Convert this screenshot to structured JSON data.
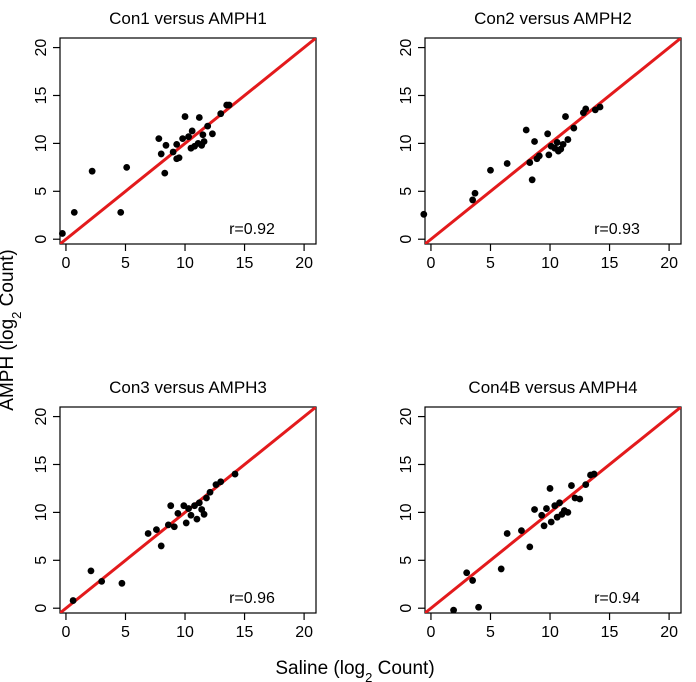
{
  "figure": {
    "xlabel": "Saline (log",
    "xlabel_sub": "2",
    "xlabel_end": " Count)",
    "ylabel": "AMPH (log",
    "ylabel_sub": "2",
    "ylabel_end": " Count)"
  },
  "colors": {
    "identity_line": "#e31a1c",
    "points": "#000000"
  },
  "chart_data": [
    {
      "type": "scatter",
      "title": "Con1 versus AMPH1",
      "annotation": "r=0.92",
      "xlim": [
        -0.5,
        21
      ],
      "ylim": [
        -0.5,
        21
      ],
      "xticks": [
        0,
        5,
        10,
        15,
        20
      ],
      "yticks": [
        0,
        5,
        10,
        15,
        20
      ],
      "reference_line": "y = x",
      "points": [
        [
          -0.3,
          0.6
        ],
        [
          0.7,
          2.8
        ],
        [
          2.2,
          7.1
        ],
        [
          4.6,
          2.8
        ],
        [
          5.1,
          7.5
        ],
        [
          7.8,
          10.5
        ],
        [
          8.0,
          8.9
        ],
        [
          8.3,
          6.9
        ],
        [
          8.4,
          9.8
        ],
        [
          9.0,
          9.1
        ],
        [
          9.3,
          9.9
        ],
        [
          9.3,
          8.4
        ],
        [
          9.5,
          8.5
        ],
        [
          9.8,
          10.5
        ],
        [
          10.0,
          12.8
        ],
        [
          10.3,
          10.7
        ],
        [
          10.5,
          9.5
        ],
        [
          10.6,
          11.3
        ],
        [
          10.8,
          9.7
        ],
        [
          11.1,
          10.0
        ],
        [
          11.2,
          12.7
        ],
        [
          11.4,
          9.8
        ],
        [
          11.5,
          10.9
        ],
        [
          11.6,
          10.2
        ],
        [
          11.9,
          11.8
        ],
        [
          12.3,
          11.0
        ],
        [
          13.0,
          13.1
        ],
        [
          13.5,
          14.0
        ],
        [
          13.7,
          14.0
        ]
      ]
    },
    {
      "type": "scatter",
      "title": "Con2 versus AMPH2",
      "annotation": "r=0.93",
      "xlim": [
        -0.5,
        21
      ],
      "ylim": [
        -0.5,
        21
      ],
      "xticks": [
        0,
        5,
        10,
        15,
        20
      ],
      "yticks": [
        0,
        5,
        10,
        15,
        20
      ],
      "reference_line": "y = x",
      "points": [
        [
          -0.6,
          2.6
        ],
        [
          3.5,
          4.1
        ],
        [
          3.7,
          4.8
        ],
        [
          5.0,
          7.2
        ],
        [
          6.4,
          7.9
        ],
        [
          8.0,
          11.4
        ],
        [
          8.3,
          8.0
        ],
        [
          8.5,
          6.2
        ],
        [
          8.7,
          10.2
        ],
        [
          8.9,
          8.4
        ],
        [
          9.1,
          8.7
        ],
        [
          9.8,
          11.0
        ],
        [
          9.9,
          8.8
        ],
        [
          10.1,
          9.7
        ],
        [
          10.4,
          9.5
        ],
        [
          10.6,
          10.1
        ],
        [
          10.7,
          9.2
        ],
        [
          10.9,
          9.4
        ],
        [
          11.1,
          9.9
        ],
        [
          11.3,
          12.8
        ],
        [
          11.5,
          10.4
        ],
        [
          12.0,
          11.6
        ],
        [
          12.8,
          13.2
        ],
        [
          13.0,
          13.6
        ],
        [
          13.8,
          13.5
        ],
        [
          14.2,
          13.8
        ]
      ]
    },
    {
      "type": "scatter",
      "title": "Con3 versus AMPH3",
      "annotation": "r=0.96",
      "xlim": [
        -0.5,
        21
      ],
      "ylim": [
        -0.5,
        21
      ],
      "xticks": [
        0,
        5,
        10,
        15,
        20
      ],
      "yticks": [
        0,
        5,
        10,
        15,
        20
      ],
      "reference_line": "y = x",
      "points": [
        [
          0.6,
          0.8
        ],
        [
          2.1,
          3.9
        ],
        [
          3.0,
          2.8
        ],
        [
          4.7,
          2.6
        ],
        [
          6.9,
          7.8
        ],
        [
          7.6,
          8.2
        ],
        [
          8.0,
          6.5
        ],
        [
          8.6,
          8.7
        ],
        [
          8.8,
          10.7
        ],
        [
          9.1,
          8.5
        ],
        [
          9.4,
          9.9
        ],
        [
          9.9,
          10.7
        ],
        [
          10.1,
          8.9
        ],
        [
          10.3,
          10.4
        ],
        [
          10.5,
          9.7
        ],
        [
          10.8,
          10.7
        ],
        [
          11.0,
          9.3
        ],
        [
          11.2,
          11.0
        ],
        [
          11.4,
          10.3
        ],
        [
          11.6,
          9.8
        ],
        [
          11.8,
          11.5
        ],
        [
          12.1,
          12.1
        ],
        [
          12.6,
          12.9
        ],
        [
          13.0,
          13.2
        ],
        [
          14.2,
          14.0
        ]
      ]
    },
    {
      "type": "scatter",
      "title": "Con4B versus AMPH4",
      "annotation": "r=0.94",
      "xlim": [
        -0.5,
        21
      ],
      "ylim": [
        -0.5,
        21
      ],
      "xticks": [
        0,
        5,
        10,
        15,
        20
      ],
      "yticks": [
        0,
        5,
        10,
        15,
        20
      ],
      "reference_line": "y = x",
      "points": [
        [
          1.9,
          -0.2
        ],
        [
          3.0,
          3.7
        ],
        [
          3.5,
          2.9
        ],
        [
          4.0,
          0.1
        ],
        [
          5.9,
          4.1
        ],
        [
          6.4,
          7.8
        ],
        [
          7.6,
          8.1
        ],
        [
          8.3,
          6.4
        ],
        [
          8.7,
          10.3
        ],
        [
          9.3,
          9.7
        ],
        [
          9.5,
          8.6
        ],
        [
          9.7,
          10.4
        ],
        [
          10.0,
          12.5
        ],
        [
          10.1,
          9.0
        ],
        [
          10.4,
          10.7
        ],
        [
          10.6,
          9.5
        ],
        [
          10.8,
          11.0
        ],
        [
          11.0,
          9.8
        ],
        [
          11.2,
          10.2
        ],
        [
          11.5,
          10.0
        ],
        [
          11.8,
          12.8
        ],
        [
          12.1,
          11.5
        ],
        [
          12.5,
          11.4
        ],
        [
          13.0,
          12.9
        ],
        [
          13.4,
          13.9
        ],
        [
          13.7,
          14.0
        ]
      ]
    }
  ]
}
